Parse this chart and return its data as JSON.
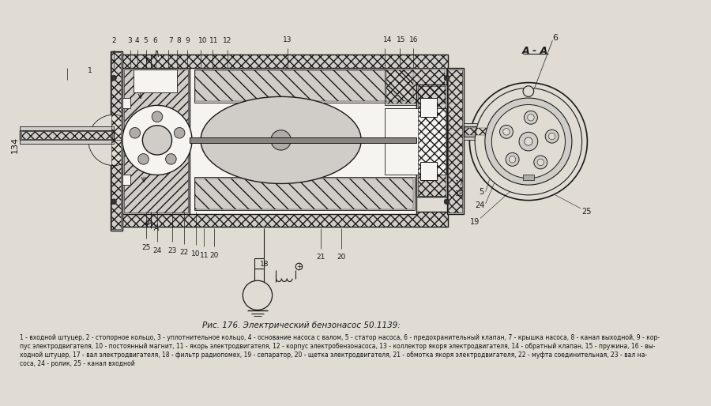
{
  "title": "Рис. 176. Электрический бензонасос 50.1139:",
  "caption_line1": "1 - входной штуцер, 2 - стопорное кольцо, 3 - уплотнительное кольцо, 4 - основание насоса с валом, 5 - статор насоса, 6 - предохранительный клапан, 7 - крышка насоса, 8 - канал выходной, 9 - кор-",
  "caption_line2": "пус электродвигателя, 10 - постоянный магнит, 11 - якорь электродвигателя, 12 - корпус электробензонасоса, 13 - коллектор якоря электродвигателя, 14 - обратный клапан, 15 - пружина, 16 - вы-",
  "caption_line3": "ходной штуцер, 17 - вал электродвигателя, 18 - фильтр радиопомех, 19 - сепаратор, 20 - щетка электродвигателя, 21 - обмотка якоря электродвигателя, 22 - муфта соединительная, 23 - вал на-",
  "caption_line4": "соса, 24 - ролик, 25 - канал входной",
  "page_num": "134",
  "bg_color": "#e0dcd4",
  "figsize": [
    9.0,
    5.14
  ],
  "dpi": 100
}
